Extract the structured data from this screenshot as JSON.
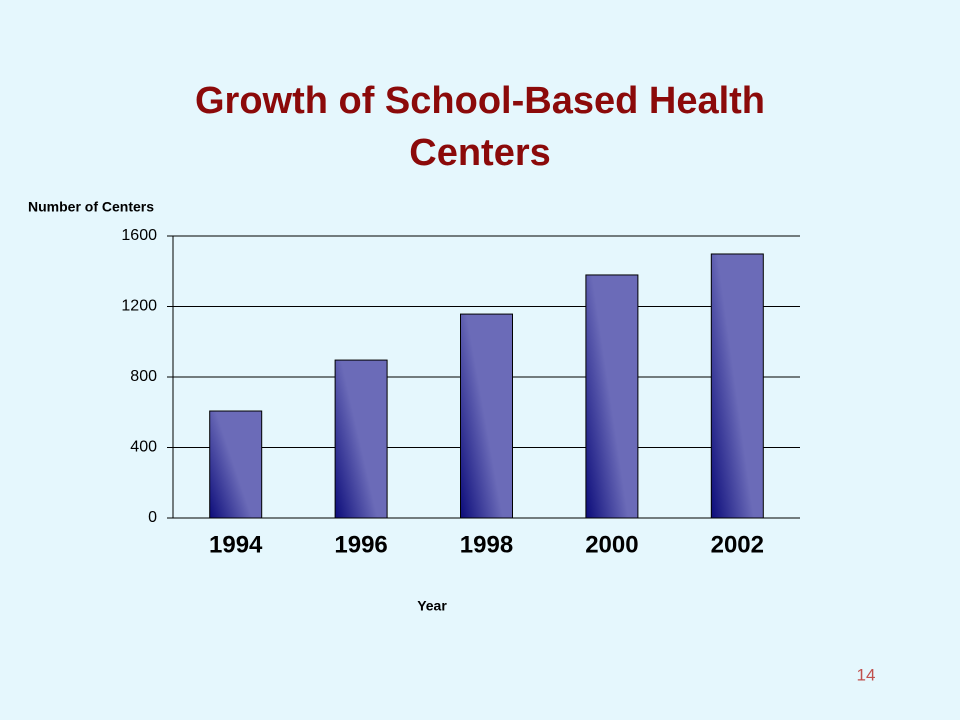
{
  "chart_data": {
    "type": "bar",
    "title": "Growth of School-Based Health Centers",
    "y_label": "Number of Centers",
    "x_label": "Year",
    "categories": [
      "1994",
      "1996",
      "1998",
      "2000",
      "2002"
    ],
    "values": [
      607,
      896,
      1157,
      1379,
      1498
    ],
    "color": "#6b6bb8",
    "ylim": [
      0,
      1600
    ],
    "yticks": [
      0,
      400,
      800,
      1200,
      1600
    ],
    "grid": true
  },
  "slide_number": "14"
}
